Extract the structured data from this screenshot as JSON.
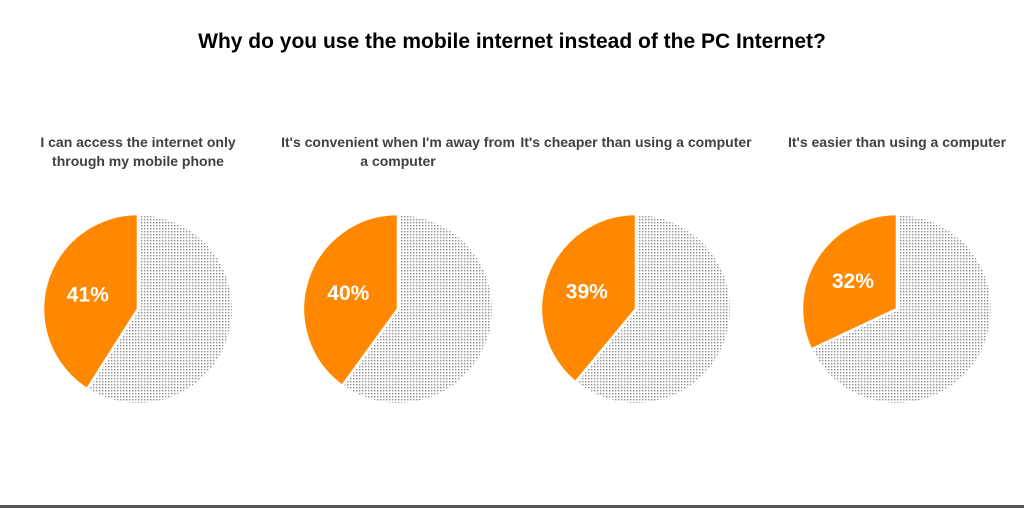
{
  "title": "Why do you use the mobile internet instead of the PC Internet?",
  "colors": {
    "highlight": "#ff8800",
    "rest_dots": "#8c8c8c",
    "rest_bg": "#ffffff"
  },
  "chart_data": [
    {
      "type": "pie",
      "title": "I can access the internet only through my mobile phone",
      "values": [
        41,
        59
      ],
      "data_labels": [
        "41%"
      ]
    },
    {
      "type": "pie",
      "title": "It's convenient when I'm away from a computer",
      "values": [
        40,
        60
      ],
      "data_labels": [
        "40%"
      ]
    },
    {
      "type": "pie",
      "title": "It's cheaper than using a computer",
      "values": [
        39,
        61
      ],
      "data_labels": [
        "39%"
      ]
    },
    {
      "type": "pie",
      "title": "It's easier than using a computer",
      "values": [
        32,
        68
      ],
      "data_labels": [
        "32%"
      ]
    }
  ]
}
